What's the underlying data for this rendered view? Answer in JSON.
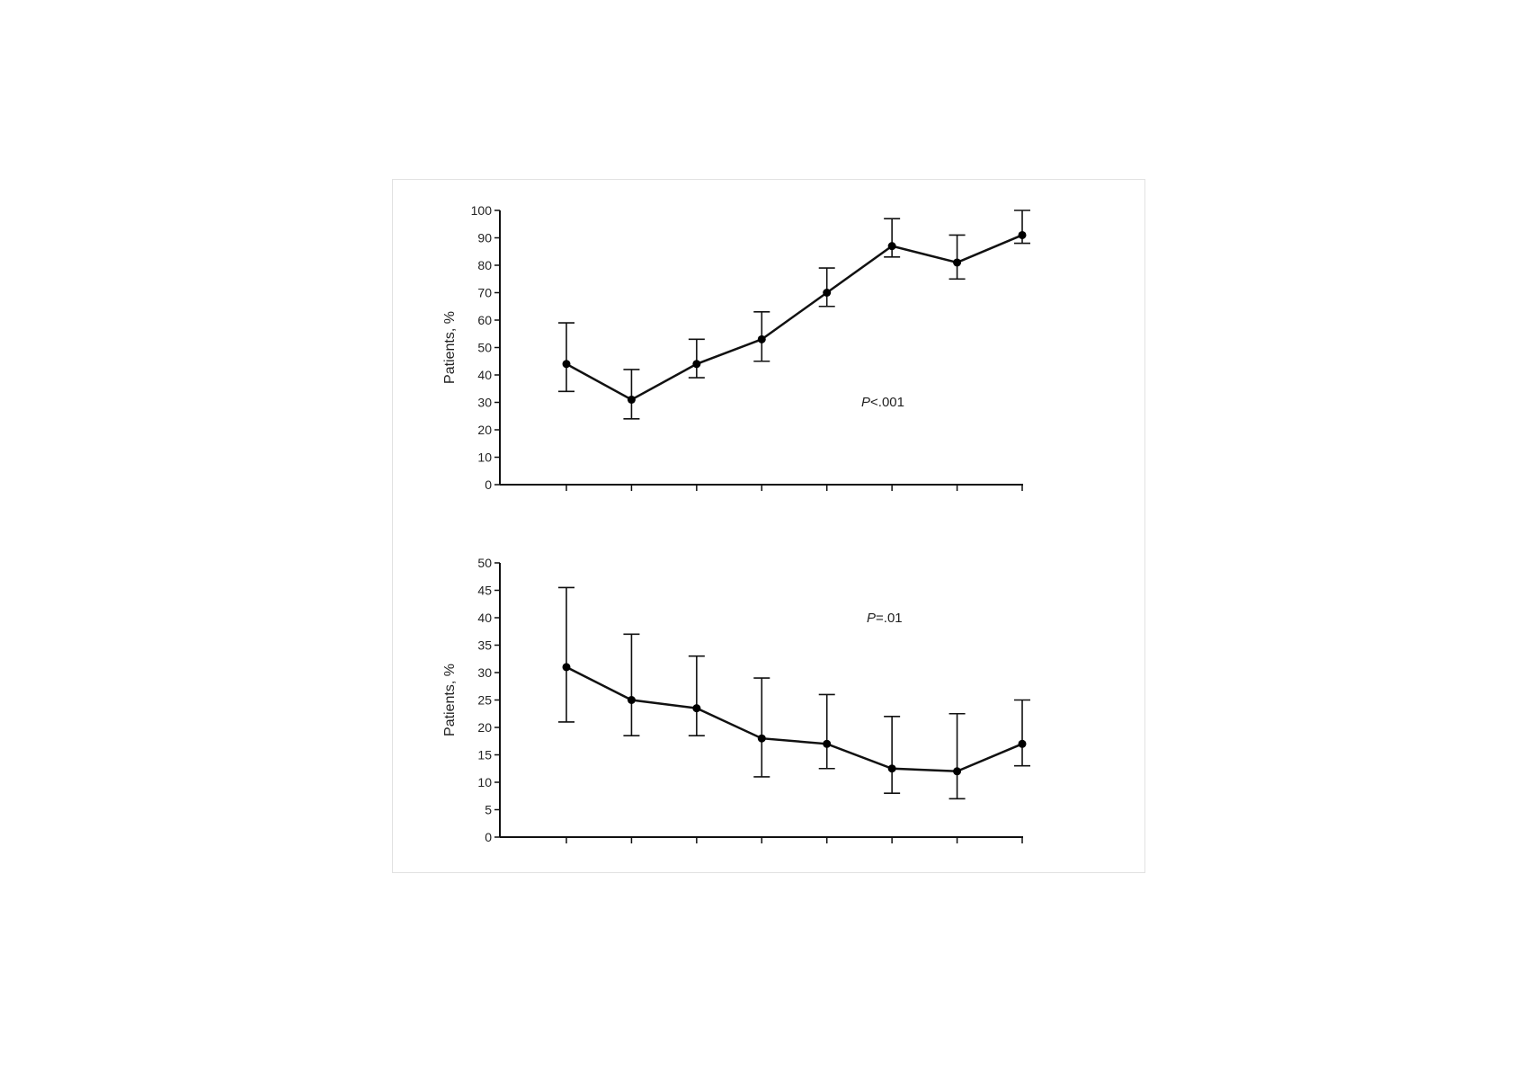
{
  "chart_data": [
    {
      "type": "line",
      "ylabel": "Patients, %",
      "ylim": [
        0,
        100
      ],
      "yticks": [
        0,
        10,
        20,
        30,
        40,
        50,
        60,
        70,
        80,
        90,
        100
      ],
      "x": [
        1,
        2,
        3,
        4,
        5,
        6,
        7,
        8
      ],
      "annotation": "P<.001",
      "annotation_parts": {
        "italic": "P",
        "rest": "<.001"
      },
      "grid": false,
      "series": [
        {
          "values": [
            44,
            31,
            44,
            53,
            70,
            87,
            81,
            91
          ],
          "err_low": [
            34,
            24,
            39,
            45,
            65,
            83,
            75,
            88
          ],
          "err_high": [
            59,
            42,
            53,
            63,
            79,
            97,
            91,
            100
          ]
        }
      ]
    },
    {
      "type": "line",
      "ylabel": "Patients, %",
      "ylim": [
        0,
        50
      ],
      "yticks": [
        0,
        5,
        10,
        15,
        20,
        25,
        30,
        35,
        40,
        45,
        50
      ],
      "x": [
        1,
        2,
        3,
        4,
        5,
        6,
        7,
        8
      ],
      "annotation": "P=.01",
      "annotation_parts": {
        "italic": "P",
        "rest": "=.01"
      },
      "grid": false,
      "series": [
        {
          "values": [
            31,
            25,
            23.5,
            18,
            17,
            12.5,
            12,
            17
          ],
          "err_low": [
            21,
            18.5,
            18.5,
            11,
            12.5,
            8,
            7,
            13
          ],
          "err_high": [
            45.5,
            37,
            33,
            29,
            26,
            22,
            22.5,
            25
          ]
        }
      ]
    }
  ]
}
